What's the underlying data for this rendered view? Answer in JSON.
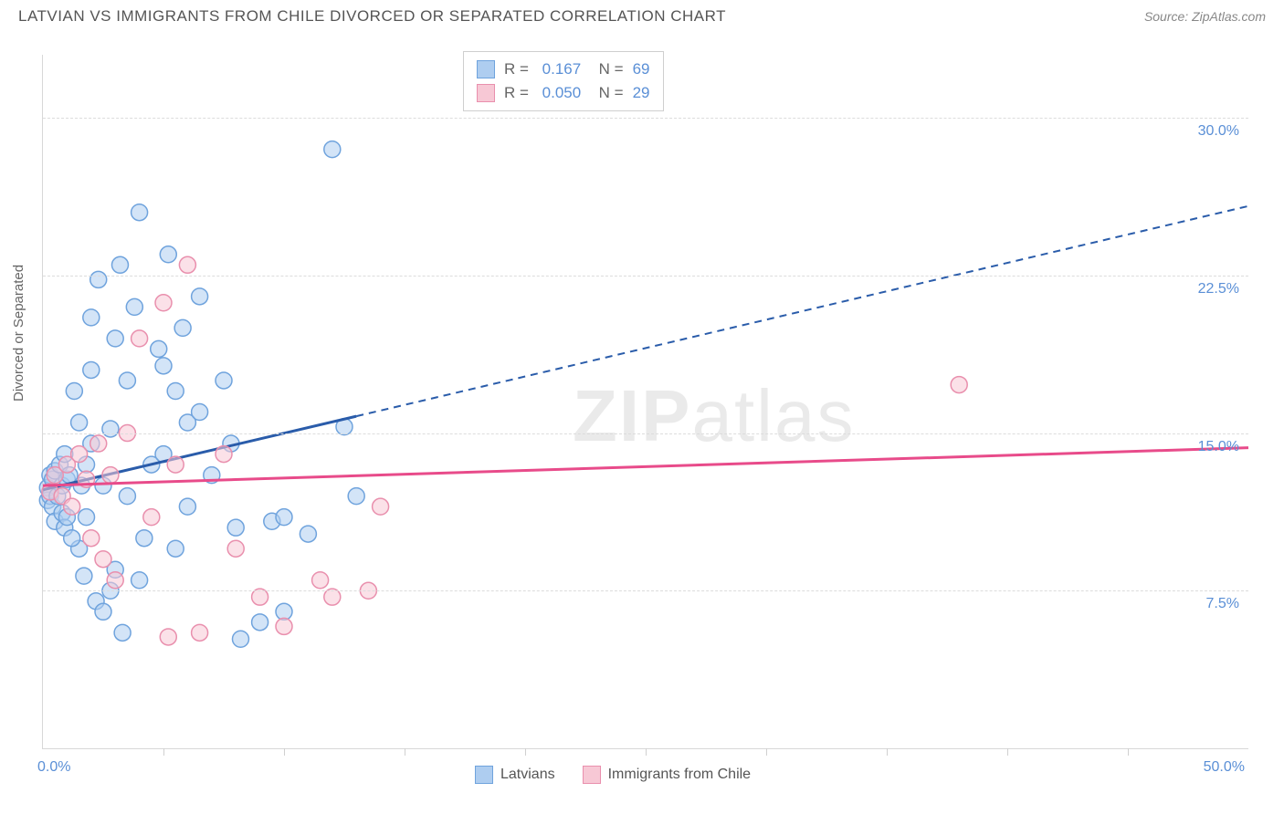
{
  "title": "LATVIAN VS IMMIGRANTS FROM CHILE DIVORCED OR SEPARATED CORRELATION CHART",
  "source": "Source: ZipAtlas.com",
  "ylabel": "Divorced or Separated",
  "watermark_bold": "ZIP",
  "watermark_light": "atlas",
  "chart": {
    "type": "scatter",
    "xlim": [
      0,
      50
    ],
    "ylim": [
      0,
      33
    ],
    "x_axis_labels": {
      "min": "0.0%",
      "max": "50.0%"
    },
    "y_gridlines": [
      7.5,
      15.0,
      22.5,
      30.0
    ],
    "y_grid_labels": [
      "7.5%",
      "15.0%",
      "22.5%",
      "30.0%"
    ],
    "x_ticks": [
      5,
      10,
      15,
      20,
      25,
      30,
      35,
      40,
      45
    ],
    "background_color": "#ffffff",
    "grid_color": "#dcdcdc",
    "axis_label_color": "#5a8fd6",
    "marker_radius": 9,
    "marker_opacity": 0.55,
    "series": [
      {
        "name": "Latvians",
        "color_fill": "#aecdf0",
        "color_stroke": "#6fa3dd",
        "line_color": "#2a5caa",
        "r_value": "0.167",
        "n_value": "69",
        "trend": {
          "x1": 0,
          "y1": 12.3,
          "x2": 13,
          "y2": 15.8,
          "dash_to_x": 50,
          "dash_to_y": 25.8
        },
        "points": [
          [
            0.2,
            12.4
          ],
          [
            0.2,
            11.8
          ],
          [
            0.3,
            13.0
          ],
          [
            0.3,
            12.0
          ],
          [
            0.4,
            12.8
          ],
          [
            0.4,
            11.5
          ],
          [
            0.5,
            13.2
          ],
          [
            0.5,
            10.8
          ],
          [
            0.6,
            12.0
          ],
          [
            0.7,
            13.5
          ],
          [
            0.8,
            11.2
          ],
          [
            0.8,
            12.5
          ],
          [
            0.9,
            10.5
          ],
          [
            1.0,
            12.8
          ],
          [
            1.0,
            11.0
          ],
          [
            1.1,
            13.0
          ],
          [
            1.3,
            17.0
          ],
          [
            1.5,
            15.5
          ],
          [
            1.7,
            8.2
          ],
          [
            1.8,
            13.5
          ],
          [
            1.8,
            11.0
          ],
          [
            2.0,
            20.5
          ],
          [
            2.0,
            18.0
          ],
          [
            2.2,
            7.0
          ],
          [
            2.3,
            22.3
          ],
          [
            2.5,
            12.5
          ],
          [
            2.5,
            6.5
          ],
          [
            2.8,
            15.2
          ],
          [
            3.0,
            19.5
          ],
          [
            3.0,
            8.5
          ],
          [
            3.2,
            23.0
          ],
          [
            3.3,
            5.5
          ],
          [
            3.5,
            17.5
          ],
          [
            3.8,
            21.0
          ],
          [
            4.0,
            25.5
          ],
          [
            4.2,
            10.0
          ],
          [
            4.5,
            13.5
          ],
          [
            5.0,
            14.0
          ],
          [
            5.0,
            18.2
          ],
          [
            5.2,
            23.5
          ],
          [
            5.5,
            9.5
          ],
          [
            5.5,
            17.0
          ],
          [
            5.8,
            20.0
          ],
          [
            6.0,
            15.5
          ],
          [
            6.0,
            11.5
          ],
          [
            6.5,
            21.5
          ],
          [
            7.0,
            13.0
          ],
          [
            7.5,
            17.5
          ],
          [
            8.0,
            10.5
          ],
          [
            8.2,
            5.2
          ],
          [
            9.0,
            6.0
          ],
          [
            9.5,
            10.8
          ],
          [
            10.0,
            6.5
          ],
          [
            10.0,
            11.0
          ],
          [
            11.0,
            10.2
          ],
          [
            12.0,
            28.5
          ],
          [
            12.5,
            15.3
          ],
          [
            13.0,
            12.0
          ],
          [
            1.5,
            9.5
          ],
          [
            2.0,
            14.5
          ],
          [
            2.8,
            7.5
          ],
          [
            3.5,
            12.0
          ],
          [
            4.0,
            8.0
          ],
          [
            4.8,
            19.0
          ],
          [
            6.5,
            16.0
          ],
          [
            7.8,
            14.5
          ],
          [
            0.9,
            14.0
          ],
          [
            1.2,
            10.0
          ],
          [
            1.6,
            12.5
          ]
        ]
      },
      {
        "name": "Immigrants from Chile",
        "color_fill": "#f7c8d5",
        "color_stroke": "#e98fad",
        "line_color": "#e84b8a",
        "r_value": "0.050",
        "n_value": "29",
        "trend": {
          "x1": 0,
          "y1": 12.5,
          "x2": 50,
          "y2": 14.3
        },
        "points": [
          [
            0.3,
            12.2
          ],
          [
            0.5,
            13.0
          ],
          [
            0.8,
            12.0
          ],
          [
            1.0,
            13.5
          ],
          [
            1.2,
            11.5
          ],
          [
            1.5,
            14.0
          ],
          [
            1.8,
            12.8
          ],
          [
            2.0,
            10.0
          ],
          [
            2.3,
            14.5
          ],
          [
            2.5,
            9.0
          ],
          [
            2.8,
            13.0
          ],
          [
            3.0,
            8.0
          ],
          [
            3.5,
            15.0
          ],
          [
            4.0,
            19.5
          ],
          [
            4.5,
            11.0
          ],
          [
            5.0,
            21.2
          ],
          [
            5.2,
            5.3
          ],
          [
            5.5,
            13.5
          ],
          [
            6.0,
            23.0
          ],
          [
            6.5,
            5.5
          ],
          [
            7.5,
            14.0
          ],
          [
            8.0,
            9.5
          ],
          [
            9.0,
            7.2
          ],
          [
            10.0,
            5.8
          ],
          [
            11.5,
            8.0
          ],
          [
            12.0,
            7.2
          ],
          [
            13.5,
            7.5
          ],
          [
            14.0,
            11.5
          ],
          [
            38.0,
            17.3
          ]
        ]
      }
    ]
  },
  "bottom_legend": [
    {
      "label": "Latvians",
      "fill": "#aecdf0",
      "stroke": "#6fa3dd"
    },
    {
      "label": "Immigrants from Chile",
      "fill": "#f7c8d5",
      "stroke": "#e98fad"
    }
  ]
}
